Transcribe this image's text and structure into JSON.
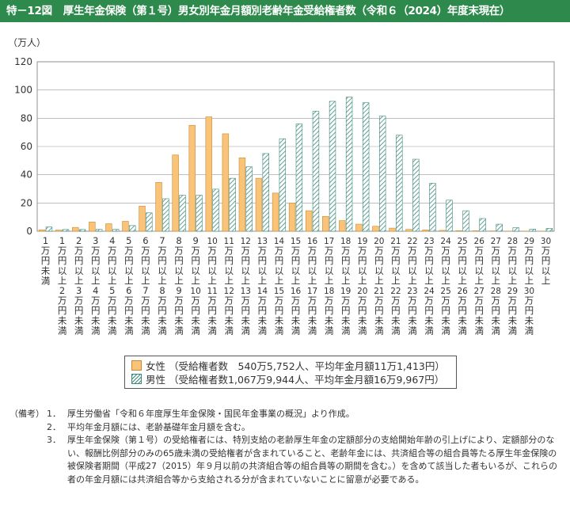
{
  "title": {
    "number": "特－12図",
    "text": "厚生年金保険（第１号）男女別年金月額別老齢年金受給権者数（令和６（2024）年度末現在）"
  },
  "chart_data": {
    "type": "bar",
    "ylabel": "（万人）",
    "ylim": [
      0,
      120
    ],
    "yticks": [
      0,
      20,
      40,
      60,
      80,
      100,
      120
    ],
    "categories": [
      "1万円未満",
      "1万円以上2万円未満",
      "2万円以上3万円未満",
      "3万円以上4万円未満",
      "4万円以上5万円未満",
      "5万円以上6万円未満",
      "6万円以上7万円未満",
      "7万円以上8万円未満",
      "8万円以上9万円未満",
      "9万円以上10万円未満",
      "10万円以上11万円未満",
      "11万円以上12万円未満",
      "12万円以上13万円未満",
      "13万円以上14万円未満",
      "14万円以上15万円未満",
      "15万円以上16万円未満",
      "16万円以上17万円未満",
      "17万円以上18万円未満",
      "18万円以上19万円未満",
      "19万円以上20万円未満",
      "20万円以上21万円未満",
      "21万円以上22万円未満",
      "22万円以上23万円未満",
      "23万円以上24万円未満",
      "24万円以上25万円未満",
      "25万円以上26万円未満",
      "26万円以上27万円未満",
      "27万円以上28万円未満",
      "28万円以上29万円未満",
      "29万円以上30万円未満",
      "30万円以上"
    ],
    "series": [
      {
        "name": "女性",
        "color": "#f9c37a",
        "values": [
          1.0,
          0.8,
          2.7,
          6.5,
          5.3,
          7.0,
          17.8,
          34.6,
          54.0,
          75.0,
          81.0,
          69.0,
          52.0,
          37.5,
          27.0,
          20.0,
          14.5,
          10.5,
          7.5,
          5.0,
          3.5,
          2.2,
          1.3,
          0.9,
          0.6,
          0.4,
          0.3,
          0.2,
          0.1,
          0.1,
          0.1
        ]
      },
      {
        "name": "男性",
        "color": "#3a8a7a",
        "values": [
          3.0,
          1.2,
          1.2,
          1.3,
          1.3,
          4.0,
          13.0,
          23.0,
          25.5,
          25.5,
          29.8,
          37.5,
          45.6,
          55.0,
          65.5,
          76.0,
          85.0,
          92.0,
          95.0,
          91.0,
          81.5,
          68.0,
          51.0,
          34.0,
          22.0,
          14.5,
          9.0,
          5.0,
          2.5,
          1.5,
          2.0
        ]
      }
    ]
  },
  "legend": {
    "female_name": "女性",
    "female_detail": "（受給権者数　540万5,752人、平均年金月額11万1,413円）",
    "male_name": "男性",
    "male_detail": "（受給権者数1,067万9,944人、平均年金月額16万9,967円）"
  },
  "notes": {
    "head": "（備考）",
    "items": [
      {
        "num": "1．",
        "text": "厚生労働省「令和６年度厚生年金保険・国民年金事業の概況」より作成。"
      },
      {
        "num": "2．",
        "text": "平均年金月額には、老齢基礎年金月額を含む。"
      },
      {
        "num": "3．",
        "text": "厚生年金保険（第１号）の受給権者には、特別支給の老齢厚生年金の定額部分の支給開始年齢の引上げにより、定額部分のない、報酬比例部分のみの65歳未満の受給権者が含まれていること、老齢年金には、共済組合等の組合員等たる厚生年金保険の被保険者期間（平成27（2015）年９月以前の共済組合等の組合員等の期間を含む。）を含めて該当した者もいるが、これらの者の年金月額には共済組合等から支給される分が含まれていないことに留意が必要である。"
      }
    ]
  }
}
